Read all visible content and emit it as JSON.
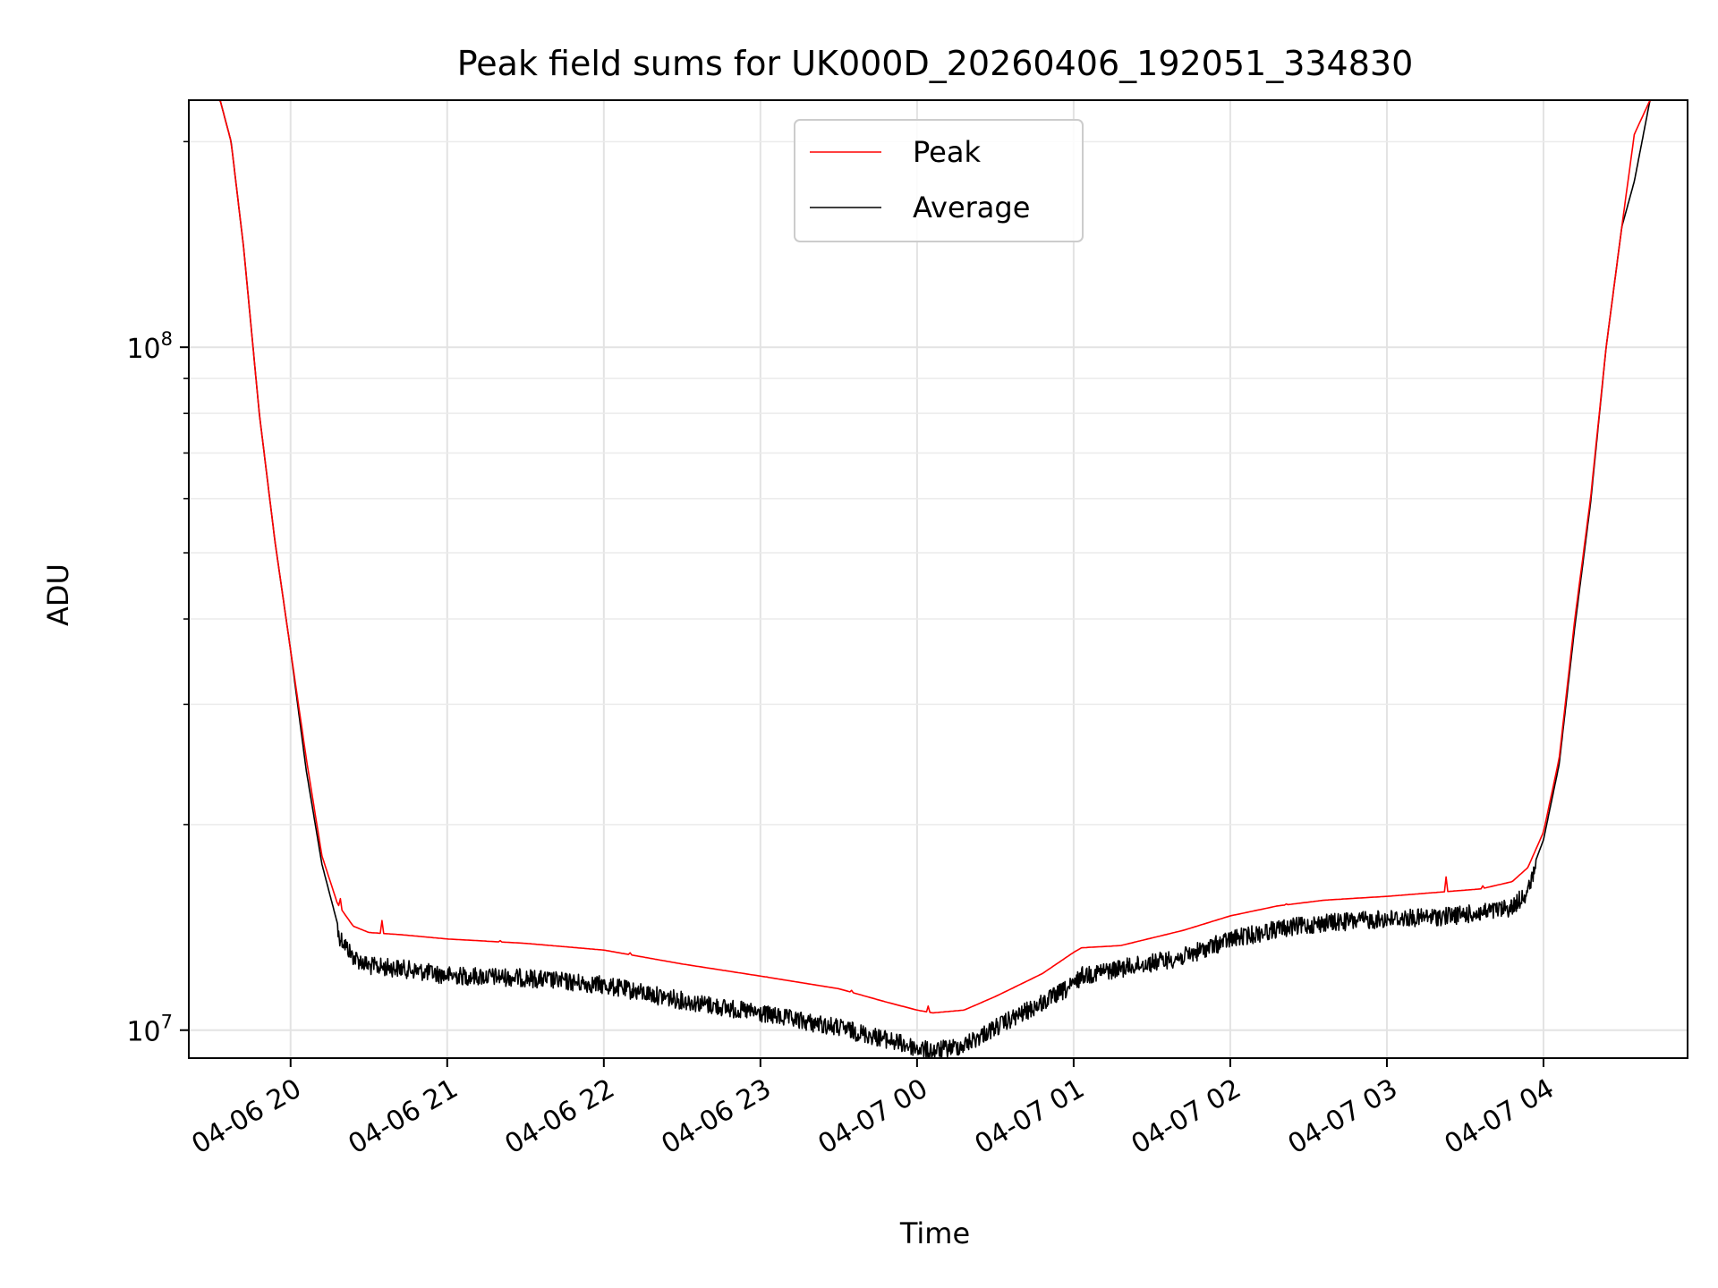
{
  "chart_data": {
    "type": "line",
    "title": "Peak field sums for UK000D_20260406_192051_334830",
    "xlabel": "Time",
    "ylabel": "ADU",
    "yscale": "log",
    "ylim": [
      9100000,
      230000000
    ],
    "xlim_hours_after_2026_04_06_19_00": [
      0.35,
      9.92
    ],
    "grid": true,
    "legend": "upper center",
    "x_ticks": [
      {
        "hours": 1,
        "label": "04-06 20"
      },
      {
        "hours": 2,
        "label": "04-06 21"
      },
      {
        "hours": 3,
        "label": "04-06 22"
      },
      {
        "hours": 4,
        "label": "04-06 23"
      },
      {
        "hours": 5,
        "label": "04-07 00"
      },
      {
        "hours": 6,
        "label": "04-07 01"
      },
      {
        "hours": 7,
        "label": "04-07 02"
      },
      {
        "hours": 8,
        "label": "04-07 03"
      },
      {
        "hours": 9,
        "label": "04-07 04"
      }
    ],
    "y_ticks": [
      {
        "value": 10000000,
        "base": "10",
        "exp": "7"
      },
      {
        "value": 100000000,
        "base": "10",
        "exp": "8"
      }
    ],
    "series": [
      {
        "name": "Peak",
        "color": "#ff0000",
        "x_hours": [
          0.35,
          0.55,
          0.62,
          0.7,
          0.8,
          0.9,
          1.0,
          1.1,
          1.2,
          1.3,
          1.4,
          1.5,
          1.7,
          2.0,
          2.5,
          3.0,
          3.5,
          4.0,
          4.5,
          4.8,
          5.0,
          5.1,
          5.3,
          5.5,
          5.8,
          6.0,
          6.05,
          6.3,
          6.7,
          7.0,
          7.3,
          7.6,
          8.0,
          8.3,
          8.6,
          8.8,
          8.9,
          9.0,
          9.1,
          9.2,
          9.3,
          9.4,
          9.5,
          9.58,
          9.68,
          9.92
        ],
        "values": [
          230000000,
          230000000,
          200000000,
          140000000,
          80000000,
          52000000,
          36000000,
          25000000,
          18000000,
          15300000,
          14200000,
          13900000,
          13800000,
          13600000,
          13400000,
          13100000,
          12500000,
          12000000,
          11500000,
          11000000,
          10700000,
          10600000,
          10700000,
          11200000,
          12100000,
          13000000,
          13200000,
          13300000,
          14000000,
          14700000,
          15200000,
          15500000,
          15700000,
          15900000,
          16100000,
          16500000,
          17300000,
          19500000,
          25000000,
          40000000,
          60000000,
          100000000,
          150000000,
          205000000,
          230000000,
          230000000
        ]
      },
      {
        "name": "Average",
        "color": "#000000",
        "x_hours": [
          0.35,
          0.55,
          0.62,
          0.7,
          0.8,
          0.9,
          1.0,
          1.1,
          1.2,
          1.3,
          1.4,
          1.5,
          1.7,
          2.0,
          2.5,
          3.0,
          3.5,
          4.0,
          4.5,
          4.8,
          5.0,
          5.1,
          5.3,
          5.5,
          5.8,
          6.0,
          6.05,
          6.3,
          6.7,
          7.0,
          7.3,
          7.6,
          8.0,
          8.3,
          8.6,
          8.8,
          8.9,
          9.0,
          9.1,
          9.2,
          9.3,
          9.4,
          9.5,
          9.58,
          9.68,
          9.92
        ],
        "values": [
          230000000,
          230000000,
          200000000,
          140000000,
          80000000,
          52000000,
          36000000,
          24000000,
          17500000,
          14300000,
          13200000,
          12800000,
          12700000,
          12400000,
          12300000,
          12000000,
          11400000,
          10900000,
          10400000,
          10000000,
          9700000,
          9600000,
          9800000,
          10400000,
          11300000,
          12000000,
          12400000,
          12700000,
          13200000,
          14000000,
          14500000,
          14800000,
          15000000,
          15100000,
          15300000,
          15600000,
          16500000,
          19000000,
          24500000,
          39000000,
          59000000,
          100000000,
          150000000,
          175000000,
          230000000,
          230000000
        ],
        "noise_fraction": 0.06
      }
    ]
  }
}
